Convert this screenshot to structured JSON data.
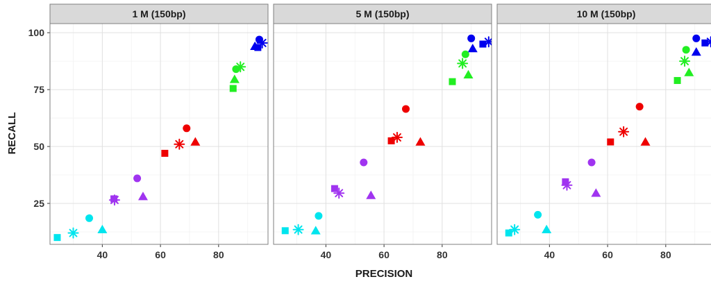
{
  "chart_data": {
    "type": "scatter",
    "xlabel": "PRECISION",
    "ylabel": "RECALL",
    "xlim": [
      22,
      97
    ],
    "ylim": [
      7,
      104
    ],
    "x_ticks": [
      40,
      60,
      80
    ],
    "y_ticks": [
      25,
      50,
      75,
      100
    ],
    "grid": true,
    "legend": "none",
    "colors": {
      "cyan": "#00e5ee",
      "purple": "#a034f0",
      "red": "#ee0000",
      "green": "#22ee22",
      "blue": "#0000ee"
    },
    "marker_shapes": [
      "square",
      "asterisk",
      "triangle",
      "circle"
    ],
    "panels": [
      {
        "title": "1 M (150bp)",
        "points": [
          {
            "x": 24.5,
            "y": 10,
            "color": "cyan",
            "shape": "square"
          },
          {
            "x": 30,
            "y": 12,
            "color": "cyan",
            "shape": "asterisk"
          },
          {
            "x": 40,
            "y": 13.5,
            "color": "cyan",
            "shape": "triangle"
          },
          {
            "x": 35.5,
            "y": 18.5,
            "color": "cyan",
            "shape": "circle"
          },
          {
            "x": 44,
            "y": 27,
            "color": "purple",
            "shape": "square"
          },
          {
            "x": 44.2,
            "y": 26.5,
            "color": "purple",
            "shape": "asterisk"
          },
          {
            "x": 54,
            "y": 28,
            "color": "purple",
            "shape": "triangle"
          },
          {
            "x": 52,
            "y": 36,
            "color": "purple",
            "shape": "circle"
          },
          {
            "x": 61.5,
            "y": 47,
            "color": "red",
            "shape": "square"
          },
          {
            "x": 66.5,
            "y": 51,
            "color": "red",
            "shape": "asterisk"
          },
          {
            "x": 72,
            "y": 52,
            "color": "red",
            "shape": "triangle"
          },
          {
            "x": 69,
            "y": 58,
            "color": "red",
            "shape": "circle"
          },
          {
            "x": 85,
            "y": 75.5,
            "color": "green",
            "shape": "square"
          },
          {
            "x": 87.5,
            "y": 85,
            "color": "green",
            "shape": "asterisk"
          },
          {
            "x": 85.5,
            "y": 79.5,
            "color": "green",
            "shape": "triangle"
          },
          {
            "x": 86,
            "y": 84,
            "color": "green",
            "shape": "circle"
          },
          {
            "x": 93.5,
            "y": 93.5,
            "color": "blue",
            "shape": "square"
          },
          {
            "x": 95,
            "y": 95.5,
            "color": "blue",
            "shape": "asterisk"
          },
          {
            "x": 92.5,
            "y": 94,
            "color": "blue",
            "shape": "triangle"
          },
          {
            "x": 94,
            "y": 97,
            "color": "blue",
            "shape": "circle"
          }
        ]
      },
      {
        "title": "5 M (150bp)",
        "points": [
          {
            "x": 26,
            "y": 13,
            "color": "cyan",
            "shape": "square"
          },
          {
            "x": 30.5,
            "y": 13.5,
            "color": "cyan",
            "shape": "asterisk"
          },
          {
            "x": 36.5,
            "y": 13,
            "color": "cyan",
            "shape": "triangle"
          },
          {
            "x": 37.5,
            "y": 19.5,
            "color": "cyan",
            "shape": "circle"
          },
          {
            "x": 43,
            "y": 31.5,
            "color": "purple",
            "shape": "square"
          },
          {
            "x": 44.5,
            "y": 29.5,
            "color": "purple",
            "shape": "asterisk"
          },
          {
            "x": 55.5,
            "y": 28.5,
            "color": "purple",
            "shape": "triangle"
          },
          {
            "x": 53,
            "y": 43,
            "color": "purple",
            "shape": "circle"
          },
          {
            "x": 62.5,
            "y": 52.5,
            "color": "red",
            "shape": "square"
          },
          {
            "x": 64.5,
            "y": 54,
            "color": "red",
            "shape": "asterisk"
          },
          {
            "x": 72.5,
            "y": 52,
            "color": "red",
            "shape": "triangle"
          },
          {
            "x": 67.5,
            "y": 66.5,
            "color": "red",
            "shape": "circle"
          },
          {
            "x": 83.5,
            "y": 78.5,
            "color": "green",
            "shape": "square"
          },
          {
            "x": 87,
            "y": 86.5,
            "color": "green",
            "shape": "asterisk"
          },
          {
            "x": 89,
            "y": 81.5,
            "color": "green",
            "shape": "triangle"
          },
          {
            "x": 88,
            "y": 90.5,
            "color": "green",
            "shape": "circle"
          },
          {
            "x": 94,
            "y": 95,
            "color": "blue",
            "shape": "square"
          },
          {
            "x": 96,
            "y": 96,
            "color": "blue",
            "shape": "asterisk"
          },
          {
            "x": 90.5,
            "y": 93,
            "color": "blue",
            "shape": "triangle"
          },
          {
            "x": 90,
            "y": 97.5,
            "color": "blue",
            "shape": "circle"
          }
        ]
      },
      {
        "title": "10 M (150bp)",
        "points": [
          {
            "x": 26,
            "y": 12,
            "color": "cyan",
            "shape": "square"
          },
          {
            "x": 28,
            "y": 13.5,
            "color": "cyan",
            "shape": "asterisk"
          },
          {
            "x": 39,
            "y": 13.5,
            "color": "cyan",
            "shape": "triangle"
          },
          {
            "x": 36,
            "y": 20,
            "color": "cyan",
            "shape": "circle"
          },
          {
            "x": 45.5,
            "y": 34.5,
            "color": "purple",
            "shape": "square"
          },
          {
            "x": 46,
            "y": 33,
            "color": "purple",
            "shape": "asterisk"
          },
          {
            "x": 56,
            "y": 29.5,
            "color": "purple",
            "shape": "triangle"
          },
          {
            "x": 54.5,
            "y": 43,
            "color": "purple",
            "shape": "circle"
          },
          {
            "x": 61,
            "y": 52,
            "color": "red",
            "shape": "square"
          },
          {
            "x": 65.5,
            "y": 56.5,
            "color": "red",
            "shape": "asterisk"
          },
          {
            "x": 73,
            "y": 52,
            "color": "red",
            "shape": "triangle"
          },
          {
            "x": 71,
            "y": 67.5,
            "color": "red",
            "shape": "circle"
          },
          {
            "x": 84,
            "y": 79,
            "color": "green",
            "shape": "square"
          },
          {
            "x": 86.5,
            "y": 87.5,
            "color": "green",
            "shape": "asterisk"
          },
          {
            "x": 88,
            "y": 82.5,
            "color": "green",
            "shape": "triangle"
          },
          {
            "x": 87,
            "y": 92.5,
            "color": "green",
            "shape": "circle"
          },
          {
            "x": 93.5,
            "y": 95.5,
            "color": "blue",
            "shape": "square"
          },
          {
            "x": 95.5,
            "y": 96,
            "color": "blue",
            "shape": "asterisk"
          },
          {
            "x": 90.5,
            "y": 91.5,
            "color": "blue",
            "shape": "triangle"
          },
          {
            "x": 90.5,
            "y": 97.5,
            "color": "blue",
            "shape": "circle"
          }
        ]
      }
    ]
  }
}
